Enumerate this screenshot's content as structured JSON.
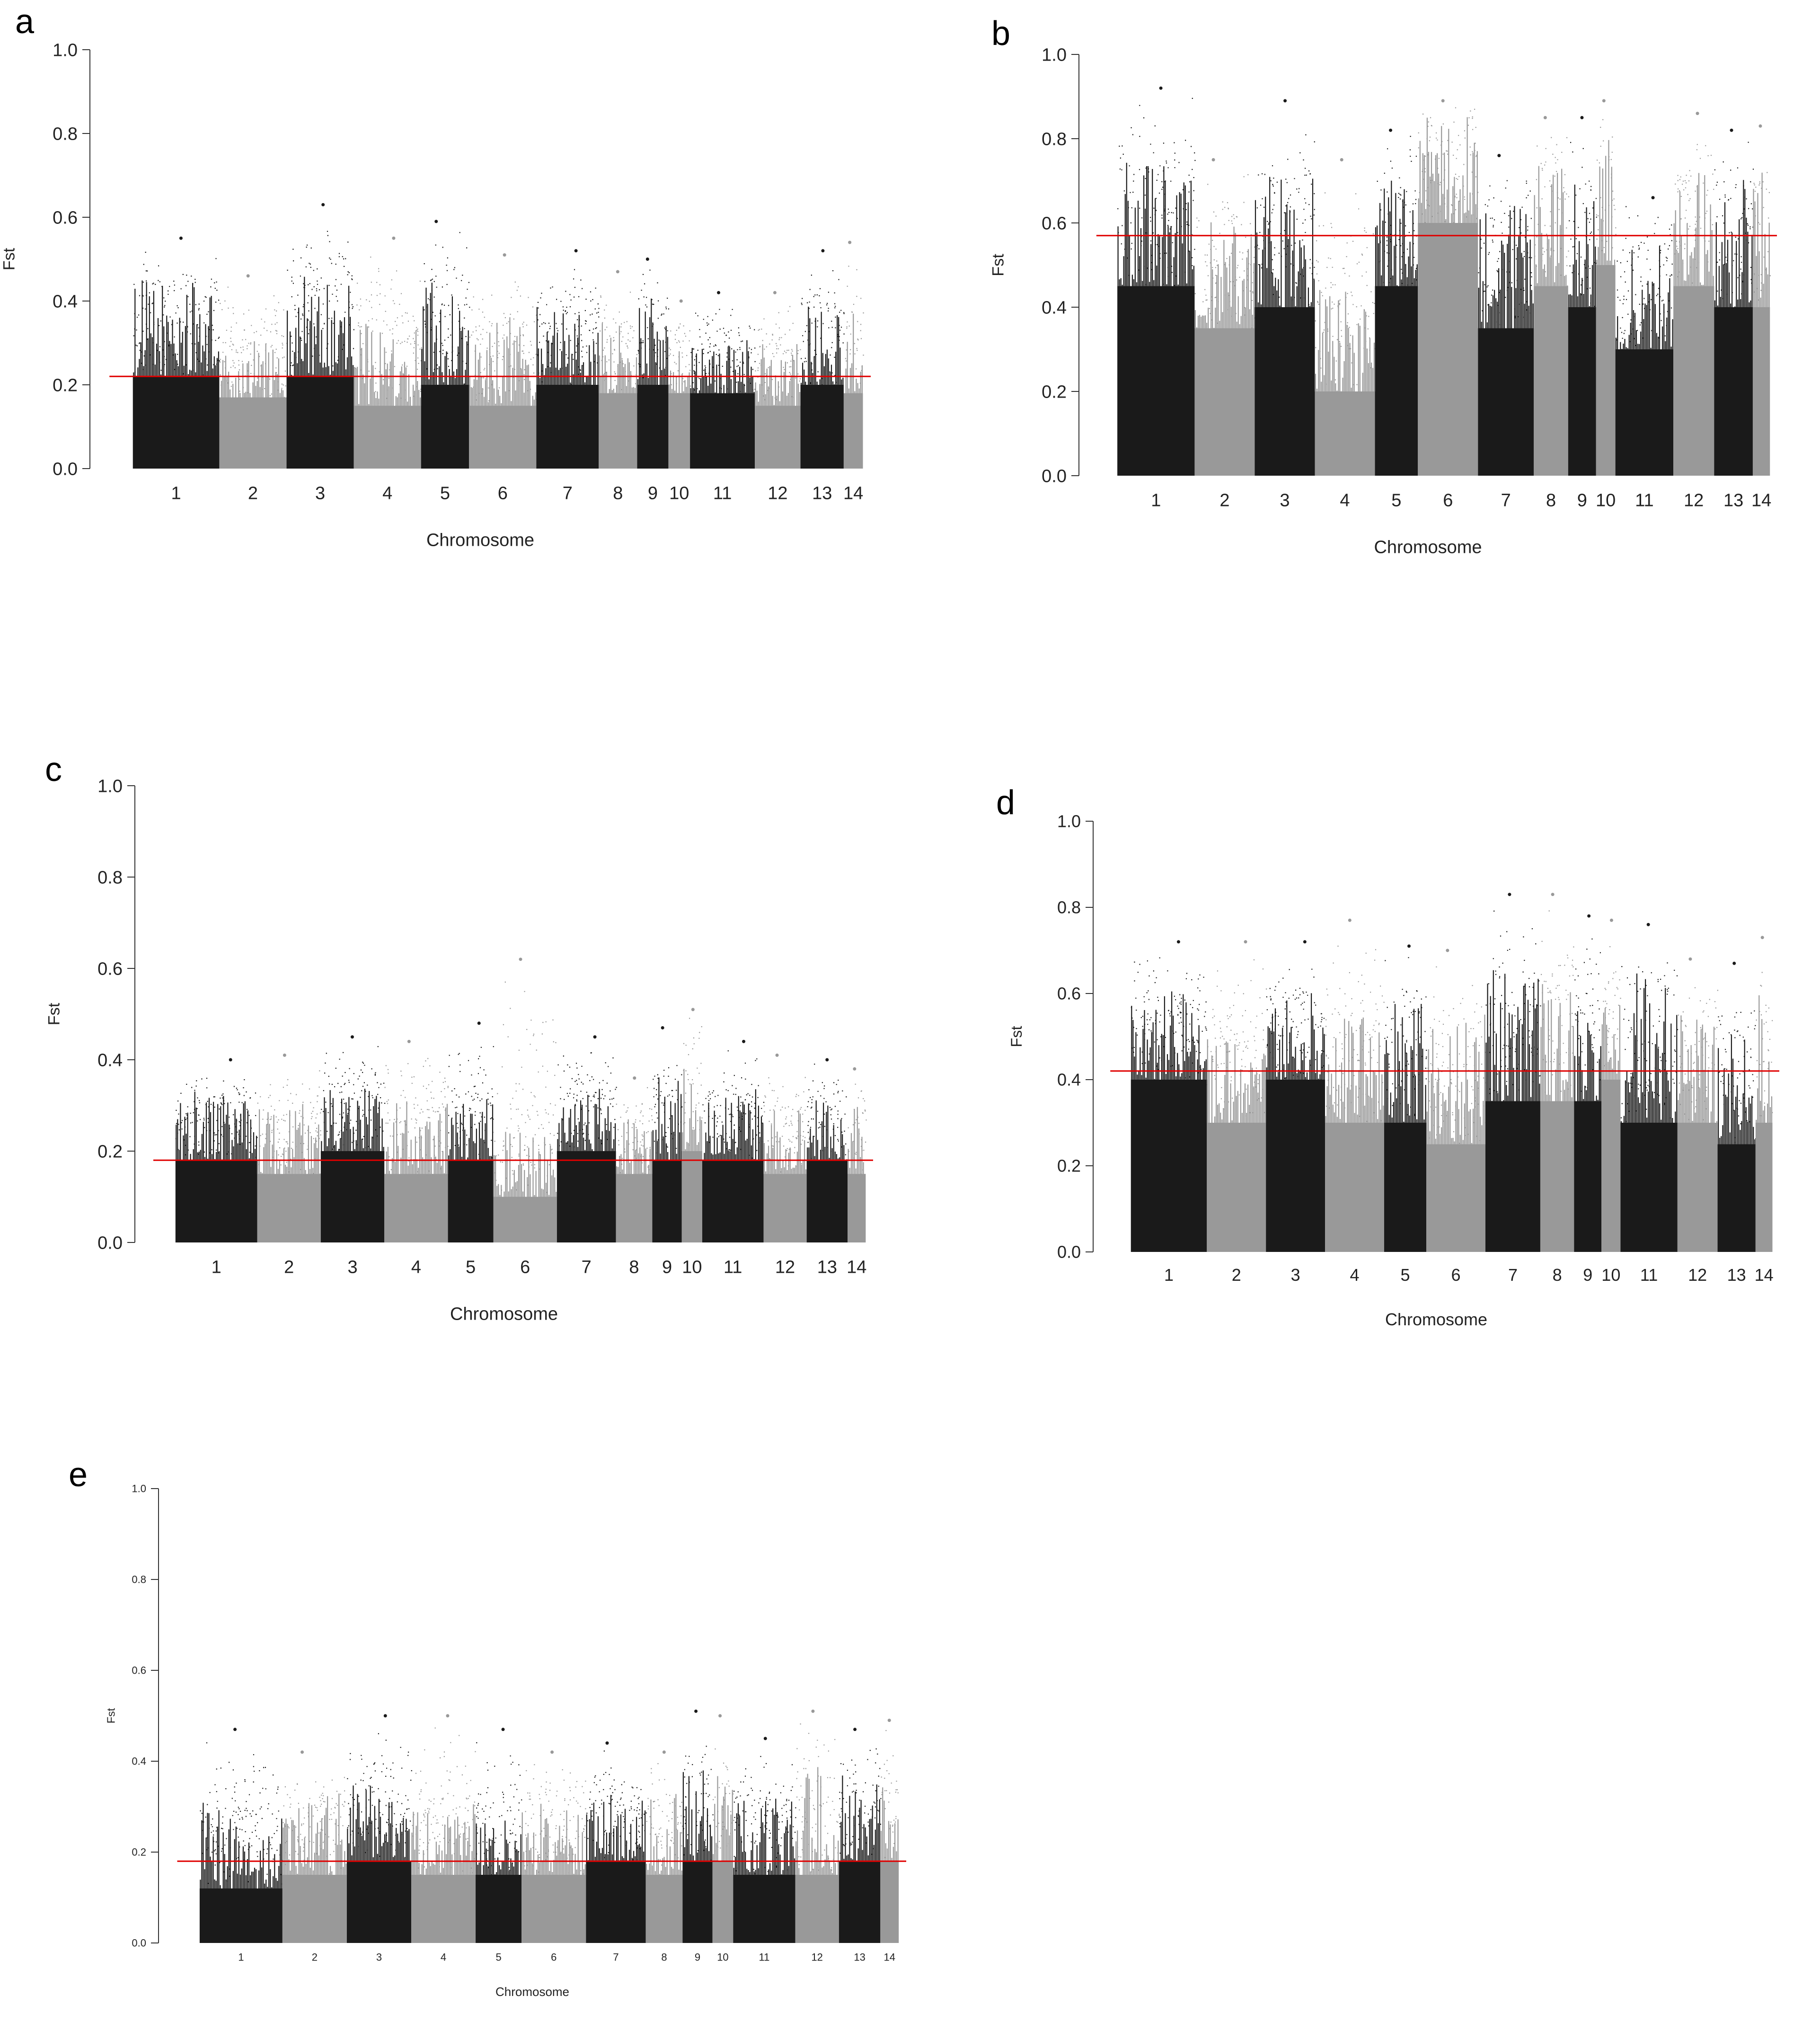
{
  "figure": {
    "colors": {
      "dark": "#1a1a1a",
      "light": "#999999",
      "threshold": "#e00000",
      "axis": "#333333"
    }
  },
  "chart_data": [
    {
      "panel": "a",
      "type": "scatter",
      "subtype": "manhattan",
      "xlabel": "Chromosome",
      "ylabel": "Fst",
      "ylim": [
        0,
        1.0
      ],
      "yticks": [
        "0.0",
        "0.2",
        "0.4",
        "0.6",
        "0.8",
        "1.0"
      ],
      "threshold": 0.22,
      "chromosomes": [
        {
          "label": "1",
          "length": 18.0,
          "top": 0.45,
          "base": 0.22,
          "peak": 0.55
        },
        {
          "label": "2",
          "length": 14.0,
          "top": 0.3,
          "base": 0.17,
          "peak": 0.46
        },
        {
          "label": "3",
          "length": 14.0,
          "top": 0.45,
          "base": 0.22,
          "peak": 0.63
        },
        {
          "label": "4",
          "length": 14.0,
          "top": 0.35,
          "base": 0.15,
          "peak": 0.55
        },
        {
          "label": "5",
          "length": 10.0,
          "top": 0.45,
          "base": 0.2,
          "peak": 0.59
        },
        {
          "label": "6",
          "length": 14.0,
          "top": 0.35,
          "base": 0.15,
          "peak": 0.51
        },
        {
          "label": "7",
          "length": 13.0,
          "top": 0.4,
          "base": 0.2,
          "peak": 0.52
        },
        {
          "label": "8",
          "length": 8.0,
          "top": 0.35,
          "base": 0.18,
          "peak": 0.47
        },
        {
          "label": "9",
          "length": 6.5,
          "top": 0.42,
          "base": 0.2,
          "peak": 0.5
        },
        {
          "label": "10",
          "length": 4.5,
          "top": 0.3,
          "base": 0.18,
          "peak": 0.4
        },
        {
          "label": "11",
          "length": 13.5,
          "top": 0.3,
          "base": 0.18,
          "peak": 0.42
        },
        {
          "label": "12",
          "length": 9.5,
          "top": 0.3,
          "base": 0.15,
          "peak": 0.42
        },
        {
          "label": "13",
          "length": 9.0,
          "top": 0.38,
          "base": 0.2,
          "peak": 0.52
        },
        {
          "label": "14",
          "length": 4.0,
          "top": 0.38,
          "base": 0.18,
          "peak": 0.54
        }
      ]
    },
    {
      "panel": "b",
      "type": "scatter",
      "subtype": "manhattan",
      "xlabel": "Chromosome",
      "ylabel": "Fst",
      "ylim": [
        0,
        1.0
      ],
      "yticks": [
        "0.0",
        "0.2",
        "0.4",
        "0.6",
        "0.8",
        "1.0"
      ],
      "threshold": 0.57,
      "chromosomes": [
        {
          "label": "1",
          "length": 18.0,
          "top": 0.75,
          "base": 0.45,
          "peak": 0.92
        },
        {
          "label": "2",
          "length": 14.0,
          "top": 0.62,
          "base": 0.35,
          "peak": 0.75
        },
        {
          "label": "3",
          "length": 14.0,
          "top": 0.72,
          "base": 0.4,
          "peak": 0.89
        },
        {
          "label": "4",
          "length": 14.0,
          "top": 0.45,
          "base": 0.2,
          "peak": 0.75
        },
        {
          "label": "5",
          "length": 10.0,
          "top": 0.7,
          "base": 0.45,
          "peak": 0.82
        },
        {
          "label": "6",
          "length": 14.0,
          "top": 0.85,
          "base": 0.6,
          "peak": 0.89
        },
        {
          "label": "7",
          "length": 13.0,
          "top": 0.65,
          "base": 0.35,
          "peak": 0.76
        },
        {
          "label": "8",
          "length": 8.0,
          "top": 0.75,
          "base": 0.45,
          "peak": 0.85
        },
        {
          "label": "9",
          "length": 6.5,
          "top": 0.7,
          "base": 0.4,
          "peak": 0.85
        },
        {
          "label": "10",
          "length": 4.5,
          "top": 0.8,
          "base": 0.5,
          "peak": 0.89
        },
        {
          "label": "11",
          "length": 13.5,
          "top": 0.55,
          "base": 0.3,
          "peak": 0.66
        },
        {
          "label": "12",
          "length": 9.5,
          "top": 0.72,
          "base": 0.45,
          "peak": 0.86
        },
        {
          "label": "13",
          "length": 9.0,
          "top": 0.7,
          "base": 0.4,
          "peak": 0.82
        },
        {
          "label": "14",
          "length": 4.0,
          "top": 0.72,
          "base": 0.4,
          "peak": 0.83
        }
      ]
    },
    {
      "panel": "c",
      "type": "scatter",
      "subtype": "manhattan",
      "xlabel": "Chromosome",
      "ylabel": "Fst",
      "ylim": [
        0,
        1.0
      ],
      "yticks": [
        "0.0",
        "0.2",
        "0.4",
        "0.6",
        "0.8",
        "1.0"
      ],
      "threshold": 0.18,
      "chromosomes": [
        {
          "label": "1",
          "length": 18.0,
          "top": 0.32,
          "base": 0.18,
          "peak": 0.4
        },
        {
          "label": "2",
          "length": 14.0,
          "top": 0.3,
          "base": 0.15,
          "peak": 0.41
        },
        {
          "label": "3",
          "length": 14.0,
          "top": 0.35,
          "base": 0.2,
          "peak": 0.45
        },
        {
          "label": "4",
          "length": 14.0,
          "top": 0.3,
          "base": 0.15,
          "peak": 0.44
        },
        {
          "label": "5",
          "length": 10.0,
          "top": 0.33,
          "base": 0.18,
          "peak": 0.48
        },
        {
          "label": "6",
          "length": 14.0,
          "top": 0.25,
          "base": 0.1,
          "peak": 0.62
        },
        {
          "label": "7",
          "length": 13.0,
          "top": 0.33,
          "base": 0.2,
          "peak": 0.45
        },
        {
          "label": "8",
          "length": 8.0,
          "top": 0.28,
          "base": 0.15,
          "peak": 0.36
        },
        {
          "label": "9",
          "length": 6.5,
          "top": 0.35,
          "base": 0.18,
          "peak": 0.47
        },
        {
          "label": "10",
          "length": 4.5,
          "top": 0.4,
          "base": 0.2,
          "peak": 0.51
        },
        {
          "label": "11",
          "length": 13.5,
          "top": 0.33,
          "base": 0.18,
          "peak": 0.44
        },
        {
          "label": "12",
          "length": 9.5,
          "top": 0.3,
          "base": 0.15,
          "peak": 0.41
        },
        {
          "label": "13",
          "length": 9.0,
          "top": 0.32,
          "base": 0.18,
          "peak": 0.4
        },
        {
          "label": "14",
          "length": 4.0,
          "top": 0.3,
          "base": 0.15,
          "peak": 0.38
        }
      ]
    },
    {
      "panel": "d",
      "type": "scatter",
      "subtype": "manhattan",
      "xlabel": "Chromosome",
      "ylabel": "Fst",
      "ylim": [
        0,
        1.0
      ],
      "yticks": [
        "0.0",
        "0.2",
        "0.4",
        "0.6",
        "0.8",
        "1.0"
      ],
      "threshold": 0.42,
      "chromosomes": [
        {
          "label": "1",
          "length": 18.0,
          "top": 0.6,
          "base": 0.4,
          "peak": 0.72
        },
        {
          "label": "2",
          "length": 14.0,
          "top": 0.5,
          "base": 0.3,
          "peak": 0.72
        },
        {
          "label": "3",
          "length": 14.0,
          "top": 0.6,
          "base": 0.4,
          "peak": 0.72
        },
        {
          "label": "4",
          "length": 14.0,
          "top": 0.55,
          "base": 0.3,
          "peak": 0.77
        },
        {
          "label": "5",
          "length": 10.0,
          "top": 0.58,
          "base": 0.3,
          "peak": 0.71
        },
        {
          "label": "6",
          "length": 14.0,
          "top": 0.55,
          "base": 0.25,
          "peak": 0.7
        },
        {
          "label": "7",
          "length": 13.0,
          "top": 0.65,
          "base": 0.35,
          "peak": 0.83
        },
        {
          "label": "8",
          "length": 8.0,
          "top": 0.62,
          "base": 0.35,
          "peak": 0.83
        },
        {
          "label": "9",
          "length": 6.5,
          "top": 0.6,
          "base": 0.35,
          "peak": 0.78
        },
        {
          "label": "10",
          "length": 4.5,
          "top": 0.65,
          "base": 0.4,
          "peak": 0.77
        },
        {
          "label": "11",
          "length": 13.5,
          "top": 0.65,
          "base": 0.3,
          "peak": 0.76
        },
        {
          "label": "12",
          "length": 9.5,
          "top": 0.55,
          "base": 0.3,
          "peak": 0.68
        },
        {
          "label": "13",
          "length": 9.0,
          "top": 0.5,
          "base": 0.25,
          "peak": 0.67
        },
        {
          "label": "14",
          "length": 4.0,
          "top": 0.6,
          "base": 0.3,
          "peak": 0.73
        }
      ]
    },
    {
      "panel": "e",
      "type": "scatter",
      "subtype": "manhattan",
      "xlabel": "Chromosome",
      "ylabel": "Fst",
      "ylim": [
        0,
        1.0
      ],
      "yticks": [
        "0.0",
        "0.2",
        "0.4",
        "0.6",
        "0.8",
        "1.0"
      ],
      "threshold": 0.18,
      "chromosomes": [
        {
          "label": "1",
          "length": 18.0,
          "top": 0.3,
          "base": 0.12,
          "peak": 0.47
        },
        {
          "label": "2",
          "length": 14.0,
          "top": 0.32,
          "base": 0.15,
          "peak": 0.42
        },
        {
          "label": "3",
          "length": 14.0,
          "top": 0.35,
          "base": 0.18,
          "peak": 0.5
        },
        {
          "label": "4",
          "length": 14.0,
          "top": 0.3,
          "base": 0.15,
          "peak": 0.5
        },
        {
          "label": "5",
          "length": 10.0,
          "top": 0.3,
          "base": 0.15,
          "peak": 0.47
        },
        {
          "label": "6",
          "length": 14.0,
          "top": 0.3,
          "base": 0.15,
          "peak": 0.42
        },
        {
          "label": "7",
          "length": 13.0,
          "top": 0.32,
          "base": 0.18,
          "peak": 0.44
        },
        {
          "label": "8",
          "length": 8.0,
          "top": 0.32,
          "base": 0.15,
          "peak": 0.42
        },
        {
          "label": "9",
          "length": 6.5,
          "top": 0.4,
          "base": 0.18,
          "peak": 0.51
        },
        {
          "label": "10",
          "length": 4.5,
          "top": 0.38,
          "base": 0.18,
          "peak": 0.5
        },
        {
          "label": "11",
          "length": 13.5,
          "top": 0.32,
          "base": 0.15,
          "peak": 0.45
        },
        {
          "label": "12",
          "length": 9.5,
          "top": 0.38,
          "base": 0.15,
          "peak": 0.51
        },
        {
          "label": "13",
          "length": 9.0,
          "top": 0.38,
          "base": 0.18,
          "peak": 0.47
        },
        {
          "label": "14",
          "length": 4.0,
          "top": 0.38,
          "base": 0.18,
          "peak": 0.49
        }
      ]
    }
  ]
}
